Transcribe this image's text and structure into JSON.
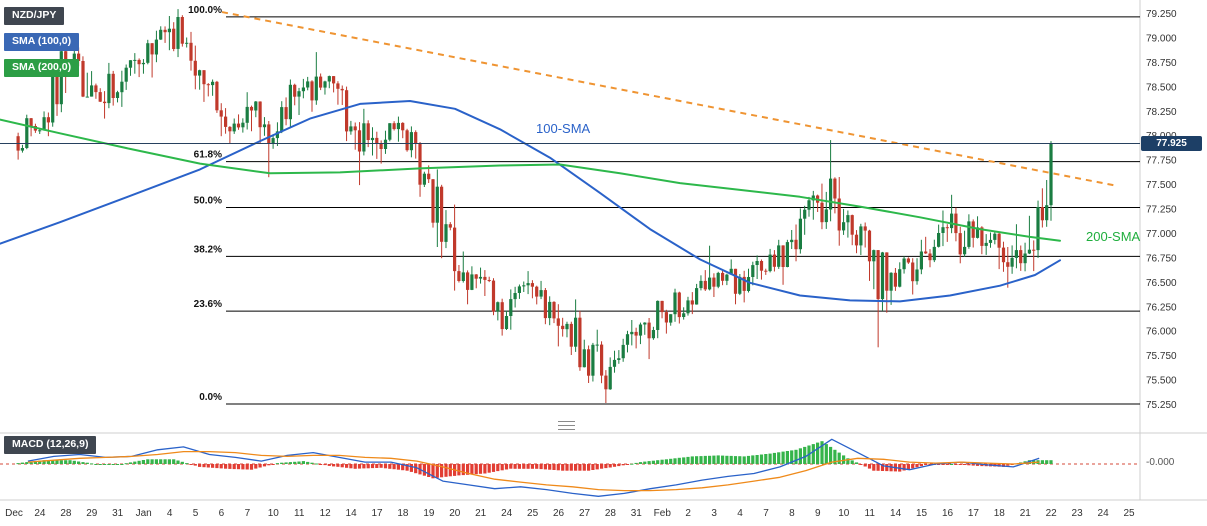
{
  "legend": {
    "symbol": "NZD/JPY",
    "sma100": "SMA (100,0)",
    "sma200": "SMA (200,0)"
  },
  "labels": {
    "sma100": "100-SMA",
    "sma200": "200-SMA"
  },
  "price_axis": {
    "last_price": "77.925",
    "ticks": [
      "79.250",
      "79.000",
      "78.750",
      "78.500",
      "78.250",
      "78.000",
      "77.750",
      "77.500",
      "77.250",
      "77.000",
      "76.750",
      "76.500",
      "76.250",
      "76.000",
      "75.750",
      "75.500",
      "75.250"
    ]
  },
  "time_axis": {
    "labels": [
      "Dec",
      "24",
      "28",
      "29",
      "31",
      "Jan",
      "4",
      "5",
      "6",
      "7",
      "10",
      "11",
      "12",
      "14",
      "17",
      "18",
      "19",
      "20",
      "21",
      "24",
      "25",
      "26",
      "27",
      "28",
      "31",
      "Feb",
      "2",
      "3",
      "4",
      "7",
      "8",
      "9",
      "10",
      "11",
      "14",
      "15",
      "16",
      "17",
      "18",
      "21",
      "22",
      "23",
      "24",
      "25"
    ]
  },
  "macd": {
    "label": "MACD (12,26,9)",
    "zero_label": "-0.000"
  },
  "colors": {
    "bull": "#1a7d42",
    "bear": "#c0392b",
    "hist_up": "#35b44a",
    "hist_down": "#e23d33",
    "macd_line": "#2a62c9",
    "signal_line": "#ef8a1a",
    "sma100": "#2a62c9",
    "sma200": "#2db84b",
    "trendline": "#ef9432",
    "price_line": "#27415f",
    "fib_line": "#000000",
    "axis_text": "#333333"
  },
  "chart_data": {
    "type": "candlestick",
    "instrument": "NZD/JPY",
    "ylim": [
      75.25,
      79.25
    ],
    "current_price": 77.925,
    "seed": 7,
    "days": [
      [
        78.0,
        78.22,
        77.76,
        78.06
      ],
      [
        78.06,
        78.98,
        78.0,
        78.72
      ],
      [
        78.72,
        79.05,
        78.4,
        78.52
      ],
      [
        78.52,
        78.75,
        78.18,
        78.45
      ],
      [
        78.45,
        78.85,
        78.3,
        78.75
      ],
      [
        78.75,
        79.23,
        78.6,
        79.1
      ],
      [
        79.1,
        79.3,
        78.48,
        78.62
      ],
      [
        78.62,
        78.68,
        78.0,
        78.2
      ],
      [
        78.2,
        78.45,
        77.92,
        78.3
      ],
      [
        78.3,
        78.36,
        77.58,
        77.98
      ],
      [
        77.98,
        78.58,
        77.9,
        78.46
      ],
      [
        78.46,
        78.86,
        78.25,
        78.56
      ],
      [
        78.56,
        78.62,
        77.95,
        78.1
      ],
      [
        78.1,
        78.28,
        77.5,
        77.92
      ],
      [
        77.92,
        78.2,
        77.72,
        78.06
      ],
      [
        78.06,
        78.1,
        77.38,
        77.56
      ],
      [
        77.56,
        77.66,
        76.42,
        76.62
      ],
      [
        76.62,
        76.82,
        76.28,
        76.56
      ],
      [
        76.56,
        76.63,
        75.96,
        76.16
      ],
      [
        76.16,
        76.62,
        76.02,
        76.46
      ],
      [
        76.46,
        76.52,
        75.85,
        76.06
      ],
      [
        76.06,
        76.33,
        75.6,
        75.82
      ],
      [
        75.82,
        76.02,
        75.27,
        75.64
      ],
      [
        75.64,
        76.12,
        75.58,
        75.96
      ],
      [
        75.96,
        76.32,
        75.72,
        76.2
      ],
      [
        76.2,
        76.44,
        75.98,
        76.32
      ],
      [
        76.32,
        76.88,
        76.18,
        76.46
      ],
      [
        76.46,
        76.74,
        76.28,
        76.56
      ],
      [
        76.56,
        76.78,
        76.3,
        76.62
      ],
      [
        76.62,
        77.04,
        76.48,
        76.94
      ],
      [
        76.94,
        77.44,
        76.72,
        77.32
      ],
      [
        77.32,
        77.96,
        76.88,
        77.12
      ],
      [
        77.12,
        77.24,
        76.52,
        76.72
      ],
      [
        76.72,
        76.84,
        75.84,
        76.46
      ],
      [
        76.46,
        76.94,
        76.38,
        76.82
      ],
      [
        76.82,
        77.24,
        76.66,
        77.06
      ],
      [
        77.06,
        77.4,
        76.7,
        76.96
      ],
      [
        76.96,
        77.18,
        76.64,
        76.86
      ],
      [
        76.86,
        77.1,
        76.45,
        76.8
      ],
      [
        76.8,
        77.95,
        76.62,
        77.925
      ]
    ],
    "fib_levels": [
      {
        "label": "100.0%",
        "price": 79.22
      },
      {
        "label": "61.8%",
        "price": 77.74
      },
      {
        "label": "50.0%",
        "price": 77.27
      },
      {
        "label": "38.2%",
        "price": 76.77
      },
      {
        "label": "23.6%",
        "price": 76.21
      },
      {
        "label": "0.0%",
        "price": 75.26
      }
    ],
    "sma100": {
      "points": [
        [
          0,
          76.9
        ],
        [
          60,
          77.12
        ],
        [
          120,
          77.35
        ],
        [
          200,
          77.66
        ],
        [
          260,
          77.95
        ],
        [
          310,
          78.18
        ],
        [
          360,
          78.33
        ],
        [
          410,
          78.36
        ],
        [
          455,
          78.28
        ],
        [
          500,
          78.07
        ],
        [
          550,
          77.78
        ],
        [
          600,
          77.42
        ],
        [
          650,
          77.05
        ],
        [
          700,
          76.74
        ],
        [
          750,
          76.5
        ],
        [
          800,
          76.37
        ],
        [
          850,
          76.32
        ],
        [
          900,
          76.31
        ],
        [
          950,
          76.37
        ],
        [
          1000,
          76.47
        ],
        [
          1035,
          76.58
        ],
        [
          1060,
          76.73
        ]
      ]
    },
    "sma200": {
      "points": [
        [
          0,
          78.17
        ],
        [
          60,
          78.03
        ],
        [
          130,
          77.87
        ],
        [
          200,
          77.72
        ],
        [
          270,
          77.62
        ],
        [
          340,
          77.63
        ],
        [
          420,
          77.67
        ],
        [
          500,
          77.7
        ],
        [
          560,
          77.71
        ],
        [
          620,
          77.62
        ],
        [
          680,
          77.52
        ],
        [
          740,
          77.45
        ],
        [
          800,
          77.38
        ],
        [
          860,
          77.28
        ],
        [
          920,
          77.17
        ],
        [
          980,
          77.05
        ],
        [
          1030,
          76.97
        ],
        [
          1060,
          76.93
        ]
      ]
    },
    "trendline": {
      "points": [
        [
          222,
          79.27
        ],
        [
          1118,
          77.49
        ]
      ]
    },
    "macd_line": [
      0.03,
      0.08,
      0.1,
      0.07,
      0.08,
      0.15,
      0.18,
      0.1,
      0.07,
      0.03,
      0.09,
      0.12,
      0.07,
      0.02,
      0.02,
      -0.04,
      -0.18,
      -0.22,
      -0.26,
      -0.24,
      -0.27,
      -0.31,
      -0.34,
      -0.31,
      -0.26,
      -0.22,
      -0.17,
      -0.13,
      -0.1,
      -0.03,
      0.08,
      0.26,
      0.12,
      -0.02,
      -0.06,
      0.0,
      0.02,
      -0.01,
      -0.03,
      0.06
    ],
    "signal_line": [
      0.02,
      0.04,
      0.06,
      0.07,
      0.08,
      0.1,
      0.13,
      0.13,
      0.12,
      0.09,
      0.08,
      0.09,
      0.09,
      0.07,
      0.06,
      0.03,
      -0.03,
      -0.1,
      -0.16,
      -0.19,
      -0.22,
      -0.24,
      -0.27,
      -0.28,
      -0.28,
      -0.27,
      -0.25,
      -0.22,
      -0.18,
      -0.14,
      -0.07,
      0.02,
      0.06,
      0.05,
      0.02,
      0.01,
      0.02,
      0.01,
      0.0,
      0.02
    ]
  }
}
